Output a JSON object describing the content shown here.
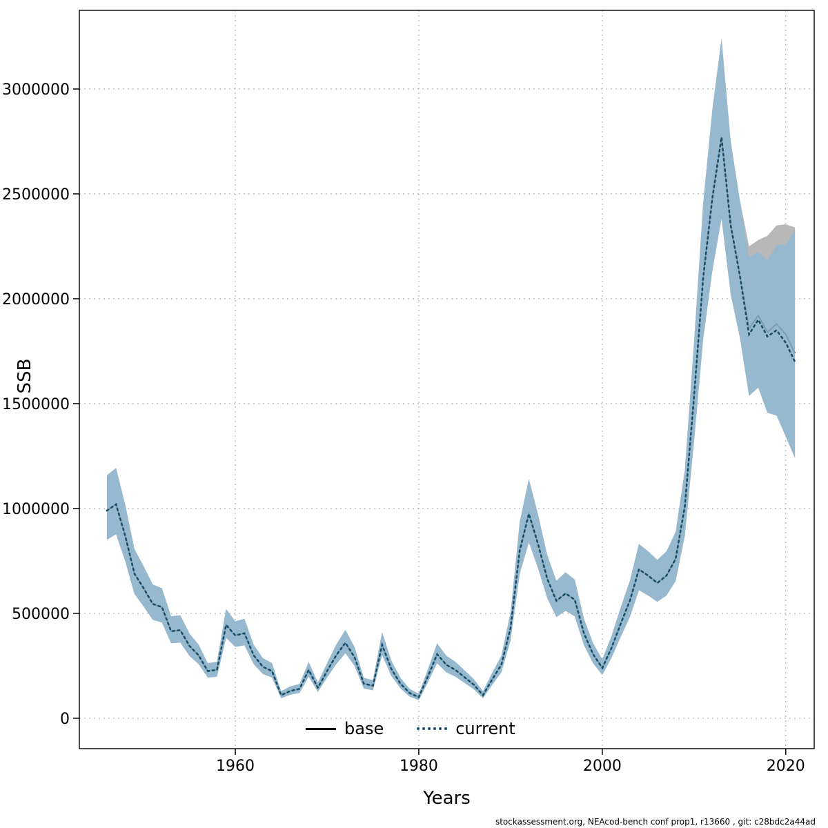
{
  "figure": {
    "background": "#ffffff"
  },
  "footer": {
    "text": "stockassessment.org, NEAcod-bench conf prop1, r13660 , git: c28bdc2a44ad"
  },
  "chart_data": {
    "type": "line",
    "title": "",
    "xlabel": "Years",
    "ylabel": "SSB",
    "grid": true,
    "legend_position": "bottom-center-inside",
    "axes": {
      "x": {
        "range": [
          1943.0,
          2023.1
        ],
        "ticks": [
          1960,
          1980,
          2000,
          2020
        ],
        "tick_labels": [
          "1960",
          "1980",
          "2000",
          "2020"
        ]
      },
      "y": {
        "range": [
          -145000,
          3375000
        ],
        "ticks": [
          0,
          500000,
          1000000,
          1500000,
          2000000,
          2500000,
          3000000
        ],
        "tick_labels": [
          "0",
          "500000",
          "1000000",
          "1500000",
          "2000000",
          "2500000",
          "3000000"
        ]
      }
    },
    "x": [
      1946,
      1947,
      1948,
      1949,
      1950,
      1951,
      1952,
      1953,
      1954,
      1955,
      1956,
      1957,
      1958,
      1959,
      1960,
      1961,
      1962,
      1963,
      1964,
      1965,
      1966,
      1967,
      1968,
      1969,
      1970,
      1971,
      1972,
      1973,
      1974,
      1975,
      1976,
      1977,
      1978,
      1979,
      1980,
      1981,
      1982,
      1983,
      1984,
      1985,
      1986,
      1987,
      1988,
      1989,
      1990,
      1991,
      1992,
      1993,
      1994,
      1995,
      1996,
      1997,
      1998,
      1999,
      2000,
      2001,
      2002,
      2003,
      2004,
      2005,
      2006,
      2007,
      2008,
      2009,
      2010,
      2011,
      2012,
      2013,
      2014,
      2015,
      2016,
      2017,
      2018,
      2019,
      2020,
      2021
    ],
    "series": [
      {
        "name": "base",
        "color": "#000000",
        "style": "solid",
        "values": [
          990000,
          1020000,
          870000,
          690000,
          620000,
          545000,
          530000,
          415000,
          420000,
          345000,
          300000,
          225000,
          230000,
          445000,
          395000,
          405000,
          300000,
          245000,
          225000,
          110000,
          130000,
          140000,
          230000,
          145000,
          225000,
          300000,
          360000,
          290000,
          165000,
          155000,
          350000,
          235000,
          165000,
          120000,
          100000,
          200000,
          305000,
          255000,
          230000,
          195000,
          160000,
          110000,
          185000,
          255000,
          430000,
          800000,
          975000,
          830000,
          665000,
          560000,
          595000,
          565000,
          405000,
          305000,
          240000,
          335000,
          450000,
          560000,
          710000,
          680000,
          645000,
          680000,
          760000,
          1010000,
          1530000,
          2100000,
          2480000,
          2770000,
          2350000,
          2110000,
          1860000,
          1920000,
          1840000,
          1880000,
          1830000,
          1740000
        ],
        "band": {
          "color": "#b0b0b0",
          "opacity": 0.9,
          "lower": [
            851000,
            877000,
            748000,
            593000,
            533000,
            469000,
            456000,
            357000,
            361000,
            297000,
            258000,
            194000,
            198000,
            383000,
            340000,
            348000,
            258000,
            211000,
            194000,
            95000,
            112000,
            120000,
            198000,
            125000,
            194000,
            258000,
            310000,
            249000,
            142000,
            133000,
            301000,
            202000,
            142000,
            103000,
            86000,
            172000,
            262000,
            219000,
            198000,
            168000,
            138000,
            95000,
            159000,
            219000,
            370000,
            688000,
            839000,
            714000,
            572000,
            482000,
            512000,
            486000,
            348000,
            262000,
            206000,
            288000,
            387000,
            482000,
            611000,
            585000,
            555000,
            585000,
            654000,
            869000,
            1316000,
            1806000,
            2133000,
            2382000,
            2021000,
            1815000,
            1537000,
            1577000,
            1456000,
            1443000,
            1343000,
            1241000
          ],
          "upper": [
            1158000,
            1193000,
            1018000,
            807000,
            725000,
            638000,
            620000,
            486000,
            491000,
            404000,
            351000,
            263000,
            269000,
            521000,
            462000,
            474000,
            351000,
            287000,
            263000,
            129000,
            152000,
            164000,
            269000,
            170000,
            263000,
            351000,
            421000,
            339000,
            193000,
            181000,
            410000,
            275000,
            193000,
            140000,
            117000,
            234000,
            357000,
            298000,
            269000,
            228000,
            187000,
            129000,
            216000,
            298000,
            503000,
            936000,
            1141000,
            971000,
            778000,
            655000,
            696000,
            661000,
            474000,
            357000,
            281000,
            392000,
            527000,
            655000,
            831000,
            796000,
            755000,
            796000,
            889000,
            1182000,
            1790000,
            2457000,
            2902000,
            3241000,
            2750000,
            2469000,
            2250000,
            2280000,
            2300000,
            2350000,
            2355000,
            2340000
          ]
        }
      },
      {
        "name": "current",
        "color": "#1b4c66",
        "style": "dotted",
        "values": [
          990000,
          1020000,
          870000,
          690000,
          620000,
          545000,
          530000,
          415000,
          420000,
          345000,
          300000,
          225000,
          230000,
          445000,
          395000,
          405000,
          300000,
          245000,
          225000,
          110000,
          130000,
          140000,
          230000,
          145000,
          225000,
          300000,
          360000,
          290000,
          165000,
          155000,
          350000,
          235000,
          165000,
          120000,
          100000,
          200000,
          305000,
          255000,
          230000,
          195000,
          160000,
          110000,
          185000,
          255000,
          430000,
          800000,
          975000,
          830000,
          665000,
          560000,
          595000,
          565000,
          405000,
          305000,
          240000,
          335000,
          450000,
          560000,
          710000,
          680000,
          645000,
          680000,
          760000,
          1010000,
          1530000,
          2100000,
          2480000,
          2770000,
          2350000,
          2110000,
          1830000,
          1900000,
          1820000,
          1850000,
          1790000,
          1700000
        ],
        "band": {
          "color": "#8fb8d4",
          "opacity": 0.85,
          "lower": [
            851000,
            877000,
            748000,
            593000,
            533000,
            469000,
            456000,
            357000,
            361000,
            297000,
            258000,
            194000,
            198000,
            383000,
            340000,
            348000,
            258000,
            211000,
            194000,
            95000,
            112000,
            120000,
            198000,
            125000,
            194000,
            258000,
            310000,
            249000,
            142000,
            133000,
            301000,
            202000,
            142000,
            103000,
            86000,
            172000,
            262000,
            219000,
            198000,
            168000,
            138000,
            95000,
            159000,
            219000,
            370000,
            688000,
            839000,
            714000,
            572000,
            482000,
            512000,
            486000,
            348000,
            262000,
            206000,
            288000,
            387000,
            482000,
            611000,
            585000,
            555000,
            585000,
            654000,
            869000,
            1316000,
            1806000,
            2133000,
            2382000,
            2021000,
            1815000,
            1537000,
            1577000,
            1456000,
            1443000,
            1343000,
            1241000
          ],
          "upper": [
            1158000,
            1193000,
            1018000,
            807000,
            725000,
            638000,
            620000,
            486000,
            491000,
            404000,
            351000,
            263000,
            269000,
            521000,
            462000,
            474000,
            351000,
            287000,
            263000,
            129000,
            152000,
            164000,
            269000,
            170000,
            263000,
            351000,
            421000,
            339000,
            193000,
            181000,
            410000,
            275000,
            193000,
            140000,
            117000,
            234000,
            357000,
            298000,
            269000,
            228000,
            187000,
            129000,
            216000,
            298000,
            503000,
            936000,
            1141000,
            971000,
            778000,
            655000,
            696000,
            661000,
            474000,
            357000,
            281000,
            392000,
            527000,
            655000,
            831000,
            796000,
            755000,
            796000,
            889000,
            1182000,
            1790000,
            2457000,
            2902000,
            3241000,
            2750000,
            2469000,
            2196000,
            2223000,
            2184000,
            2257000,
            2255000,
            2329000
          ]
        }
      }
    ]
  }
}
